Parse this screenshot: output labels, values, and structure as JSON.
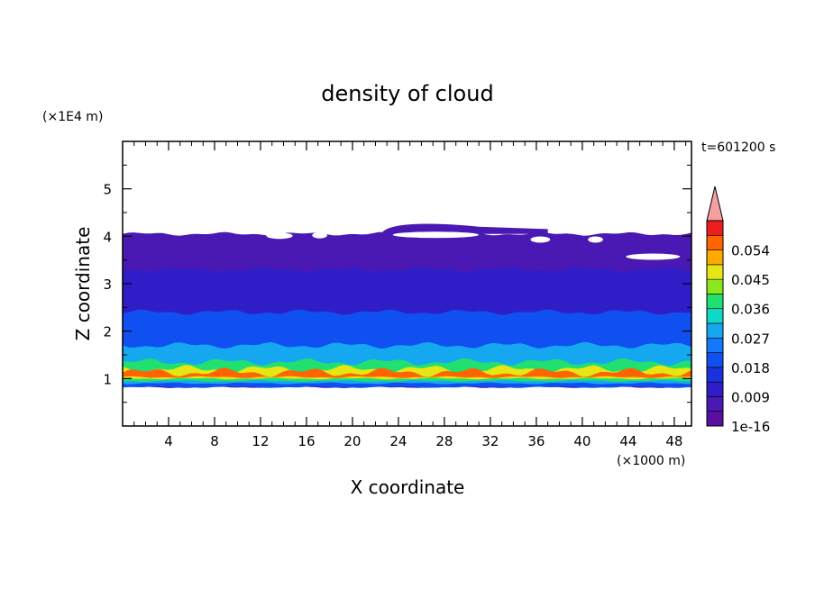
{
  "chart_data": {
    "type": "heatmap",
    "title": "density of cloud",
    "time_label": "t=601200 s",
    "xlabel": "X coordinate",
    "ylabel": "Z coordinate",
    "x_unit": "(×1000 m)",
    "y_unit": "(×1E4 m)",
    "xlim": [
      0,
      49.5
    ],
    "ylim": [
      0,
      6.0
    ],
    "x_ticks": [
      4,
      8,
      12,
      16,
      20,
      24,
      28,
      32,
      36,
      40,
      44,
      48
    ],
    "y_ticks": [
      1,
      2,
      3,
      4,
      5
    ],
    "colorbar": {
      "labels": [
        "1e-16",
        "0.009",
        "0.018",
        "0.027",
        "0.036",
        "0.045",
        "0.054"
      ],
      "levels": 14,
      "extend": "max",
      "colors": [
        "#5a0fa0",
        "#4a18b2",
        "#2f1ec8",
        "#1a32dc",
        "#1050f0",
        "#1478ff",
        "#15a8f0",
        "#10d8c8",
        "#20e070",
        "#8ce81e",
        "#e6e614",
        "#ffaa00",
        "#ff6400",
        "#ee1e1e"
      ],
      "over_color": "#f5a0a0"
    },
    "layers": [
      {
        "z_bottom": 0.82,
        "z_top": 4.05,
        "level": 1,
        "description_level": "lowest"
      },
      {
        "z_bottom": 0.82,
        "z_top": 3.3,
        "level": 2
      },
      {
        "z_bottom": 0.82,
        "z_top": 2.4,
        "level": 4
      },
      {
        "z_bottom": 0.9,
        "z_top": 1.7,
        "level": 6
      },
      {
        "z_bottom": 0.95,
        "z_top": 1.35,
        "level": 8
      },
      {
        "z_bottom": 1.0,
        "z_top": 1.2,
        "level": 10
      },
      {
        "z_bottom": 1.03,
        "z_top": 1.13,
        "level": 12
      }
    ]
  }
}
